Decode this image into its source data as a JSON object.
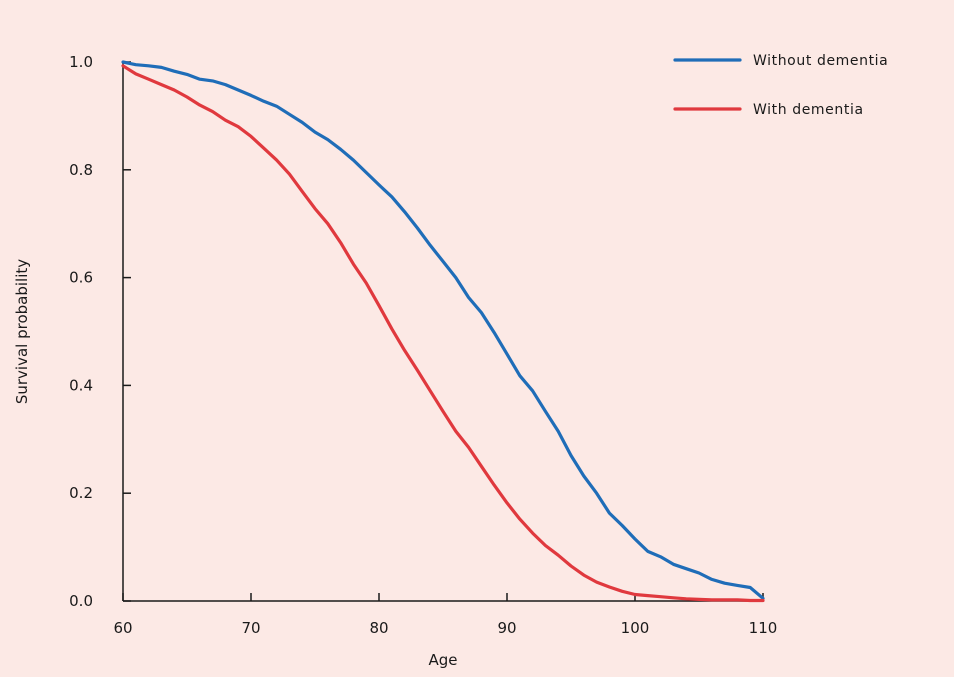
{
  "colors": {
    "background": "#fce9e5",
    "axis": "#1a1a1a"
  },
  "chart_data": {
    "type": "line",
    "title": "",
    "xlabel": "Age",
    "ylabel": "Survival probability",
    "xlim": [
      60,
      110
    ],
    "ylim": [
      0,
      1
    ],
    "xticks": [
      60,
      70,
      80,
      90,
      100,
      110
    ],
    "xtick_labels": [
      "60",
      "70",
      "80",
      "90",
      "100",
      "110"
    ],
    "yticks": [
      0,
      0.2,
      0.4,
      0.6,
      0.8,
      1.0
    ],
    "ytick_labels": [
      "0.0",
      "0.2",
      "0.4",
      "0.6",
      "0.8",
      "1.0"
    ],
    "grid": false,
    "legend_position": "top-right",
    "series": [
      {
        "name": "Without dementia",
        "color": "#1f6db8",
        "x": [
          60,
          61,
          62,
          63,
          64,
          65,
          66,
          67,
          68,
          69,
          70,
          71,
          72,
          73,
          74,
          75,
          76,
          77,
          78,
          79,
          80,
          81,
          82,
          83,
          84,
          85,
          86,
          87,
          88,
          89,
          90,
          91,
          92,
          93,
          94,
          95,
          96,
          97,
          98,
          99,
          100,
          101,
          102,
          103,
          104,
          105,
          106,
          107,
          108,
          109,
          110
        ],
        "y": [
          1.0,
          0.995,
          0.993,
          0.99,
          0.983,
          0.977,
          0.968,
          0.965,
          0.958,
          0.948,
          0.938,
          0.927,
          0.918,
          0.903,
          0.888,
          0.87,
          0.856,
          0.838,
          0.818,
          0.795,
          0.772,
          0.75,
          0.722,
          0.692,
          0.66,
          0.63,
          0.6,
          0.563,
          0.535,
          0.498,
          0.458,
          0.418,
          0.39,
          0.352,
          0.315,
          0.27,
          0.232,
          0.2,
          0.163,
          0.14,
          0.115,
          0.092,
          0.082,
          0.068,
          0.06,
          0.052,
          0.04,
          0.033,
          0.029,
          0.025,
          0.005
        ]
      },
      {
        "name": "With dementia",
        "color": "#e0393e",
        "x": [
          60,
          61,
          62,
          63,
          64,
          65,
          66,
          67,
          68,
          69,
          70,
          71,
          72,
          73,
          74,
          75,
          76,
          77,
          78,
          79,
          80,
          81,
          82,
          83,
          84,
          85,
          86,
          87,
          88,
          89,
          90,
          91,
          92,
          93,
          94,
          95,
          96,
          97,
          98,
          99,
          100,
          101,
          102,
          103,
          104,
          105,
          106,
          107,
          108,
          109,
          110
        ],
        "y": [
          0.993,
          0.978,
          0.968,
          0.958,
          0.948,
          0.935,
          0.92,
          0.908,
          0.892,
          0.88,
          0.862,
          0.84,
          0.818,
          0.792,
          0.76,
          0.728,
          0.7,
          0.665,
          0.625,
          0.59,
          0.548,
          0.505,
          0.465,
          0.428,
          0.39,
          0.352,
          0.315,
          0.285,
          0.25,
          0.215,
          0.182,
          0.152,
          0.126,
          0.103,
          0.085,
          0.065,
          0.048,
          0.035,
          0.026,
          0.018,
          0.012,
          0.01,
          0.008,
          0.006,
          0.004,
          0.003,
          0.002,
          0.002,
          0.002,
          0.001,
          0.001
        ]
      }
    ]
  }
}
